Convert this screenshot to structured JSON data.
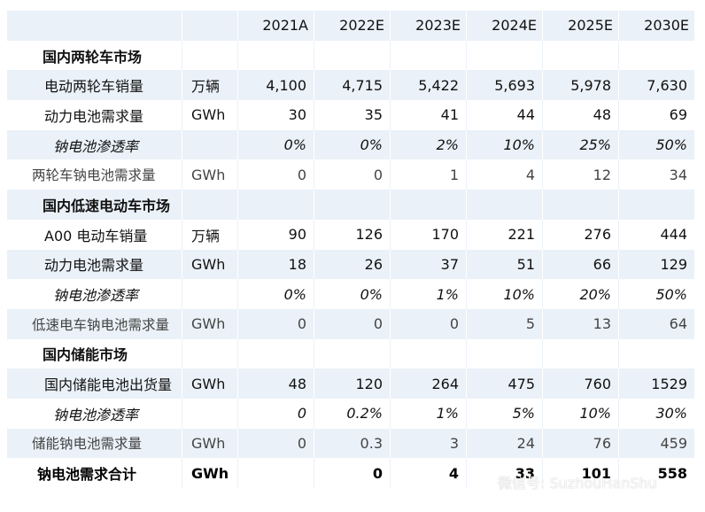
{
  "columns": [
    "2021A",
    "2022E",
    "2023E",
    "2024E",
    "2025E",
    "2030E"
  ],
  "rows": [
    {
      "type": "section",
      "name": "国内两轮车市场",
      "unit": "",
      "values": [
        "",
        "",
        "",
        "",
        "",
        ""
      ]
    },
    {
      "type": "metric",
      "name": "电动两轮车销量",
      "unit": "万辆",
      "values": [
        "4,100",
        "4,715",
        "5,422",
        "5,693",
        "5,978",
        "7,630"
      ]
    },
    {
      "type": "metric",
      "name": "动力电池需求量",
      "unit": "GWh",
      "values": [
        "30",
        "35",
        "41",
        "44",
        "48",
        "69"
      ]
    },
    {
      "type": "pct",
      "name": "钠电池渗透率",
      "unit": "",
      "values": [
        "0%",
        "0%",
        "2%",
        "10%",
        "25%",
        "50%"
      ]
    },
    {
      "type": "derived",
      "name": "两轮车钠电池需求量",
      "unit": "GWh",
      "values": [
        "0",
        "0",
        "1",
        "4",
        "12",
        "34"
      ]
    },
    {
      "type": "section",
      "name": "国内低速电动车市场",
      "unit": "",
      "values": [
        "",
        "",
        "",
        "",
        "",
        ""
      ]
    },
    {
      "type": "metric",
      "name": "A00 电动车销量",
      "unit": "万辆",
      "values": [
        "90",
        "126",
        "170",
        "221",
        "276",
        "444"
      ]
    },
    {
      "type": "metric",
      "name": "动力电池需求量",
      "unit": "GWh",
      "values": [
        "18",
        "26",
        "37",
        "51",
        "66",
        "129"
      ]
    },
    {
      "type": "pct",
      "name": "钠电池渗透率",
      "unit": "",
      "values": [
        "0%",
        "0%",
        "1%",
        "10%",
        "20%",
        "50%"
      ]
    },
    {
      "type": "derived",
      "name": "低速电车钠电池需求量",
      "unit": "GWh",
      "values": [
        "0",
        "0",
        "0",
        "5",
        "13",
        "64"
      ]
    },
    {
      "type": "section",
      "name": "国内储能市场",
      "unit": "",
      "values": [
        "",
        "",
        "",
        "",
        "",
        ""
      ]
    },
    {
      "type": "metric",
      "name": "国内储能电池出货量",
      "unit": "GWh",
      "values": [
        "48",
        "120",
        "264",
        "475",
        "760",
        "1529"
      ]
    },
    {
      "type": "pct",
      "name": "钠电池渗透率",
      "unit": "",
      "values": [
        "0",
        "0.2%",
        "1%",
        "5%",
        "10%",
        "30%"
      ]
    },
    {
      "type": "derived",
      "name": "储能钠电池需求量",
      "unit": "GWh",
      "values": [
        "0",
        "0.3",
        "3",
        "24",
        "76",
        "459"
      ]
    },
    {
      "type": "total",
      "name": "钠电池需求合计",
      "unit": "GWh",
      "values": [
        "",
        "0",
        "4",
        "33",
        "101",
        "558"
      ]
    }
  ],
  "watermark": {
    "icon": "wechat-icon",
    "text": "微信号: SuzhouHanShu"
  }
}
